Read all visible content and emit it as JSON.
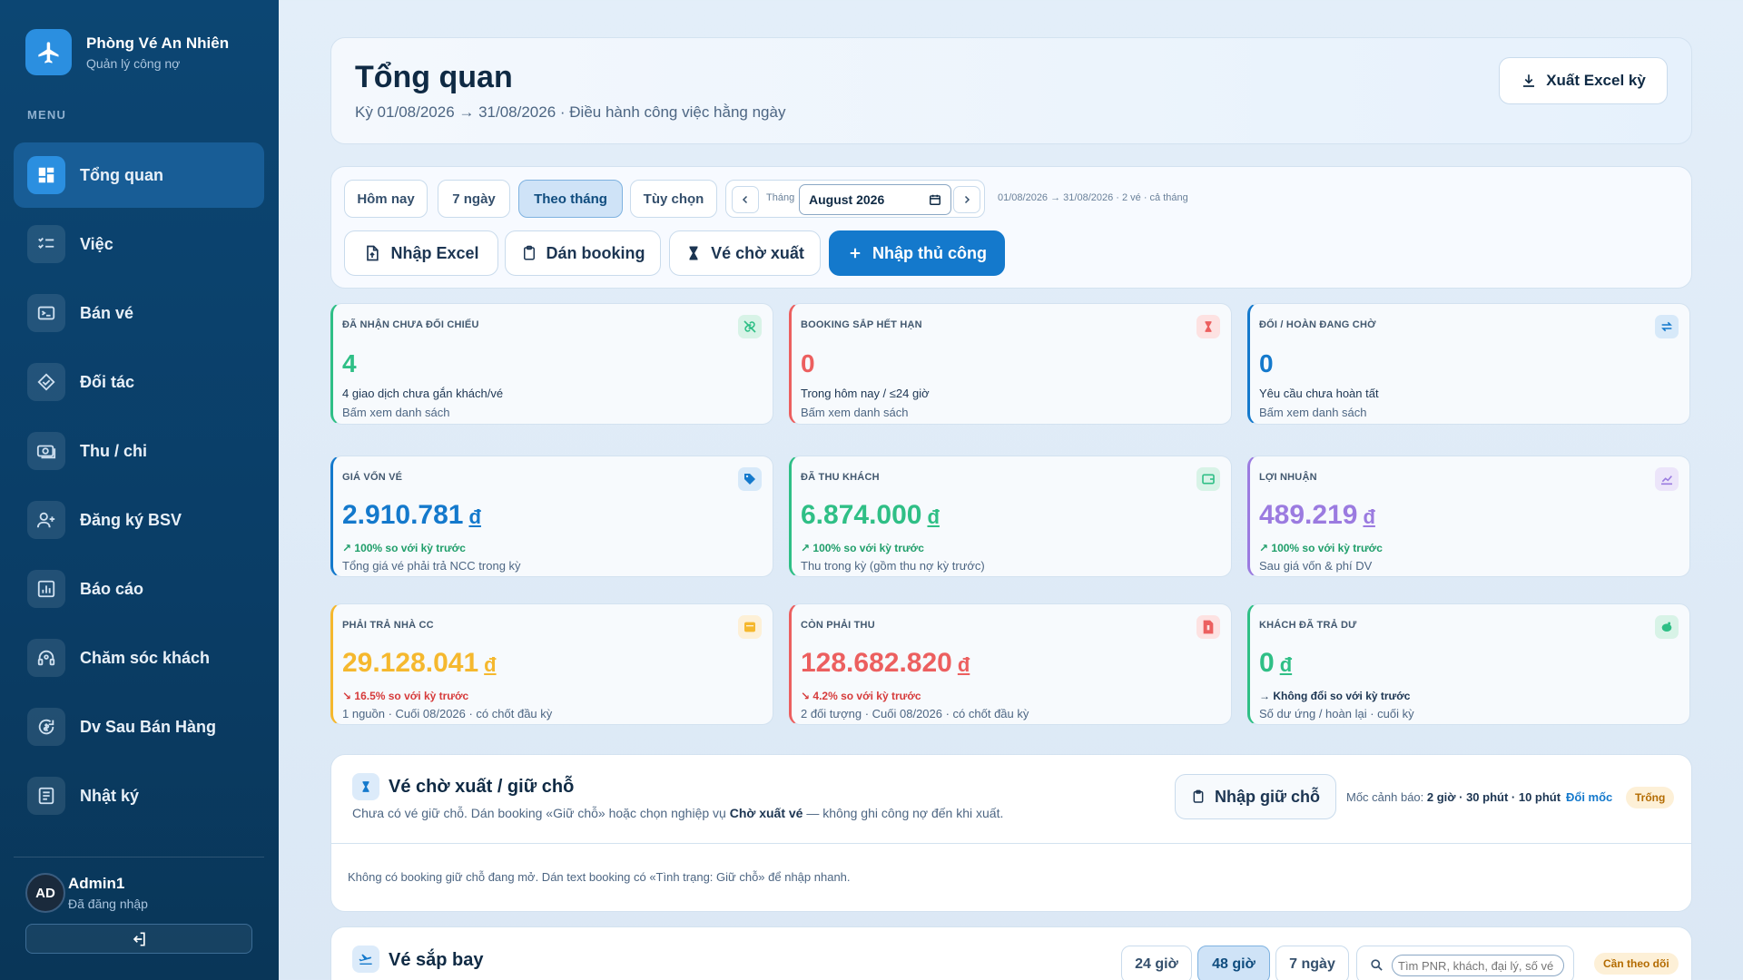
{
  "brand": {
    "title": "Phòng Vé An Nhiên",
    "subtitle": "Quản lý công nợ"
  },
  "menu_label": "MENU",
  "nav": [
    {
      "label": "Tổng quan",
      "icon": "dashboard-icon",
      "active": true
    },
    {
      "label": "Việc",
      "icon": "checklist-icon"
    },
    {
      "label": "Bán vé",
      "icon": "ticket-icon"
    },
    {
      "label": "Đối tác",
      "icon": "handshake-icon"
    },
    {
      "label": "Thu / chi",
      "icon": "cash-icon"
    },
    {
      "label": "Đăng ký BSV",
      "icon": "user-add-icon"
    },
    {
      "label": "Báo cáo",
      "icon": "report-icon"
    },
    {
      "label": "Chăm sóc khách",
      "icon": "support-icon"
    },
    {
      "label": "Dv Sau Bán Hàng",
      "icon": "refresh-money-icon"
    },
    {
      "label": "Nhật ký",
      "icon": "log-icon"
    }
  ],
  "user": {
    "initials": "AD",
    "name": "Admin1",
    "status": "Đã đăng nhập"
  },
  "header": {
    "title": "Tổng quan",
    "subtitle": "Kỳ 01/08/2026 → 31/08/2026 · Điều hành công việc hằng ngày",
    "export_label": "Xuất Excel kỳ"
  },
  "filters": {
    "ranges": [
      "Hôm nay",
      "7 ngày",
      "Theo tháng",
      "Tùy chọn"
    ],
    "active_range": "Theo tháng",
    "month_label": "Tháng",
    "month_value": "August 2026",
    "range_note": "01/08/2026 → 31/08/2026 · 2 vé · cả tháng",
    "actions": {
      "import_excel": "Nhập Excel",
      "paste_booking": "Dán booking",
      "pending_tickets": "Vé chờ xuất",
      "manual_entry": "Nhập thủ công"
    }
  },
  "stats_row1": [
    {
      "label": "ĐÃ NHẬN CHƯA ĐỐI CHIẾU",
      "value": "4",
      "line1": "4 giao dịch chưa gắn khách/vé",
      "line2": "Bấm xem danh sách",
      "color": "#2fbf86",
      "icon": "unlink-icon"
    },
    {
      "label": "BOOKING SẮP HẾT HẠN",
      "value": "0",
      "line1": "Trong hôm nay / ≤24 giờ",
      "line2": "Bấm xem danh sách",
      "color": "#ec5f5f",
      "icon": "hourglass-icon"
    },
    {
      "label": "ĐỔI / HOÀN ĐANG CHỜ",
      "value": "0",
      "line1": "Yêu cầu chưa hoàn tất",
      "line2": "Bấm xem danh sách",
      "color": "#1479cc",
      "icon": "swap-icon"
    }
  ],
  "stats_row2": [
    {
      "label": "GIÁ VỐN VÉ",
      "value": "2.910.781",
      "currency": "đ",
      "trend": "↗ 100% so với kỳ trước",
      "desc": "Tổng giá vé phải trả NCC trong kỳ",
      "color": "#1479cc",
      "trend_color": "#1f9e6a",
      "icon": "tag-icon"
    },
    {
      "label": "ĐÃ THU KHÁCH",
      "value": "6.874.000",
      "currency": "đ",
      "trend": "↗ 100% so với kỳ trước",
      "desc": "Thu trong kỳ (gồm thu nợ kỳ trước)",
      "color": "#2fbf86",
      "trend_color": "#1f9e6a",
      "icon": "wallet-icon"
    },
    {
      "label": "LỢI NHUẬN",
      "value": "489.219",
      "currency": "đ",
      "trend": "↗ 100% so với kỳ trước",
      "desc": "Sau giá vốn & phí DV",
      "color": "#9b7be0",
      "trend_color": "#1f9e6a",
      "icon": "chart-icon"
    }
  ],
  "stats_row3": [
    {
      "label": "PHẢI TRẢ NHÀ CC",
      "value": "29.128.041",
      "currency": "đ",
      "trend": "↘ 16.5% so với kỳ trước",
      "desc": "1 nguồn · Cuối 08/2026 · có chốt đầu kỳ",
      "color": "#f5b82e",
      "trend_color": "#d63b3b",
      "icon": "store-icon"
    },
    {
      "label": "CÒN PHẢI THU",
      "value": "128.682.820",
      "currency": "đ",
      "trend": "↘ 4.2% so với kỳ trước",
      "desc": "2 đối tượng · Cuối 08/2026 · có chốt đầu kỳ",
      "color": "#ec5f5f",
      "trend_color": "#d63b3b",
      "icon": "invoice-icon"
    },
    {
      "label": "KHÁCH ĐÃ TRẢ DƯ",
      "value": "0",
      "currency": "đ",
      "trend": "→ Không đổi so với kỳ trước",
      "desc": "Số dư ứng / hoàn lại · cuối kỳ",
      "color": "#2fbf86",
      "trend_color": "#1c3552",
      "icon": "piggy-icon"
    }
  ],
  "pending": {
    "title": "Vé chờ xuất / giữ chỗ",
    "desc_part1": "Chưa có vé giữ chỗ. Dán booking «Giữ chỗ» hoặc chọn nghiệp vụ ",
    "desc_bold": "Chờ xuất vé",
    "desc_part2": " — không ghi công nợ đến khi xuất.",
    "hold_btn": "Nhập giữ chỗ",
    "milestone_label": "Mốc cảnh báo: ",
    "milestone_value": "2 giờ · 30 phút · 10 phút",
    "change_link": "Đổi mốc",
    "badge": "Trống",
    "empty_note": "Không có booking giữ chỗ đang mở. Dán text booking có «Tình trạng: Giữ chỗ» để nhập nhanh."
  },
  "upcoming": {
    "title": "Vé sắp bay",
    "ranges": [
      "24 giờ",
      "48 giờ",
      "7 ngày"
    ],
    "active_range": "48 giờ",
    "search_placeholder": "Tìm PNR, khách, đại lý, số vé",
    "badge": "Cần theo dõi"
  }
}
